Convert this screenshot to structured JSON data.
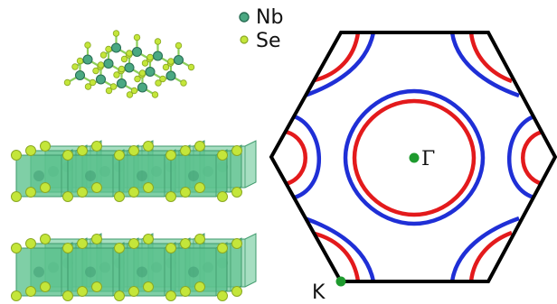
{
  "legend": {
    "items": [
      {
        "label": "Nb",
        "color": "#4aa882",
        "edge": "#2a6e55"
      },
      {
        "label": "Se",
        "color": "#c4e63a",
        "edge": "#8aa824"
      }
    ]
  },
  "bz": {
    "gamma_label": "Γ",
    "k_label": "K",
    "point_color": "#1e9a2e",
    "edge_color": "#000000",
    "sheet_colors": {
      "red": "#e31a1c",
      "blue": "#1f2fd6"
    }
  },
  "crystal": {
    "prism_color": "#5cc28e",
    "prism_edge": "#3f9a6c",
    "bond_color": "#8ccf5c"
  }
}
